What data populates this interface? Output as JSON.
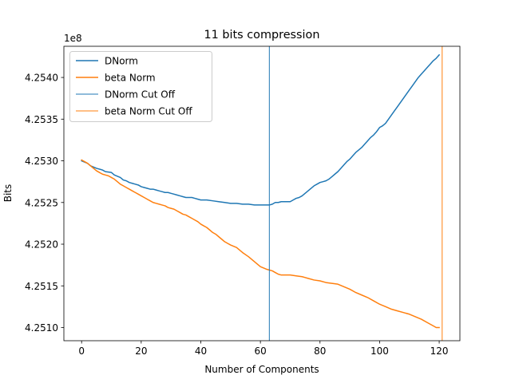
{
  "chart_data": {
    "type": "line",
    "title": "11 bits compression",
    "xlabel": "Number of Components",
    "ylabel": "Bits",
    "offset_text": "1e8",
    "xlim": [
      -5.95,
      126.95
    ],
    "ylim": [
      425084200,
      425437400
    ],
    "xticks": [
      0,
      20,
      40,
      60,
      80,
      100,
      120
    ],
    "yticks": [
      425100000,
      425150000,
      425200000,
      425250000,
      425300000,
      425350000,
      425400000
    ],
    "ytick_labels": [
      "4.2510",
      "4.2515",
      "4.2520",
      "4.2525",
      "4.2530",
      "4.2535",
      "4.2540"
    ],
    "grid": false,
    "legend_position": "upper-left",
    "series": [
      {
        "name": "DNorm",
        "color": "#1f77b4",
        "x": [
          0,
          2,
          3,
          5,
          7,
          8,
          10,
          11,
          13,
          14,
          15,
          16,
          17,
          18,
          19,
          20,
          21,
          22,
          23,
          24,
          25,
          26,
          27,
          28,
          29,
          30,
          31,
          32,
          33,
          34,
          35,
          36,
          37,
          38,
          39,
          40,
          42,
          44,
          46,
          48,
          50,
          52,
          54,
          56,
          58,
          60,
          62,
          63,
          64,
          65,
          66,
          67,
          68,
          69,
          70,
          71,
          72,
          73,
          74,
          75,
          76,
          77,
          78,
          79,
          80,
          81,
          82,
          83,
          84,
          85,
          86,
          87,
          88,
          89,
          90,
          91,
          92,
          93,
          94,
          95,
          96,
          97,
          98,
          99,
          100,
          101,
          102,
          103,
          104,
          105,
          106,
          107,
          108,
          109,
          110,
          111,
          112,
          113,
          114,
          115,
          116,
          117,
          118,
          119,
          120
        ],
        "y": [
          425300000,
          425297000,
          425294000,
          425291000,
          425289000,
          425287000,
          425286000,
          425283000,
          425280000,
          425277000,
          425276000,
          425274000,
          425273000,
          425272000,
          425271000,
          425269000,
          425268000,
          425267000,
          425266000,
          425266000,
          425265000,
          425264000,
          425263000,
          425262000,
          425262000,
          425261000,
          425260000,
          425259000,
          425258000,
          425257000,
          425256000,
          425256000,
          425256000,
          425255000,
          425254000,
          425253000,
          425253000,
          425252000,
          425251000,
          425250000,
          425249000,
          425249000,
          425248000,
          425248000,
          425247000,
          425247000,
          425247000,
          425247000,
          425248000,
          425250000,
          425250000,
          425251000,
          425251000,
          425251000,
          425251000,
          425253000,
          425255000,
          425256000,
          425258000,
          425261000,
          425264000,
          425267000,
          425270000,
          425272000,
          425274000,
          425275000,
          425276000,
          425278000,
          425281000,
          425284000,
          425287000,
          425291000,
          425295000,
          425299000,
          425302000,
          425306000,
          425310000,
          425313000,
          425316000,
          425320000,
          425324000,
          425328000,
          425331000,
          425335000,
          425340000,
          425342000,
          425345000,
          425350000,
          425355000,
          425360000,
          425365000,
          425370000,
          425375000,
          425380000,
          425385000,
          425390000,
          425395000,
          425400000,
          425404000,
          425408000,
          425412000,
          425416000,
          425420000,
          425423000,
          425427000
        ]
      },
      {
        "name": "beta Norm",
        "color": "#ff7f0e",
        "x": [
          0,
          1,
          2,
          3,
          4,
          5,
          6,
          7,
          8,
          9,
          10,
          11,
          12,
          13,
          14,
          15,
          16,
          17,
          18,
          19,
          20,
          21,
          22,
          23,
          24,
          25,
          26,
          27,
          28,
          29,
          30,
          31,
          32,
          33,
          34,
          35,
          36,
          37,
          38,
          39,
          40,
          41,
          42,
          43,
          44,
          45,
          46,
          47,
          48,
          49,
          50,
          52,
          54,
          56,
          58,
          60,
          62,
          64,
          65,
          66,
          67,
          68,
          70,
          72,
          74,
          76,
          78,
          80,
          82,
          84,
          86,
          88,
          90,
          92,
          94,
          96,
          98,
          100,
          102,
          104,
          106,
          108,
          110,
          112,
          114,
          116,
          118,
          119,
          120
        ],
        "y": [
          425301000,
          425299000,
          425297000,
          425294000,
          425291000,
          425288000,
          425286000,
          425284000,
          425283000,
          425282000,
          425280000,
          425278000,
          425275000,
          425272000,
          425270000,
          425268000,
          425266000,
          425264000,
          425262000,
          425260000,
          425258000,
          425256000,
          425254000,
          425252000,
          425250000,
          425249000,
          425248000,
          425247000,
          425246000,
          425244000,
          425243000,
          425242000,
          425240000,
          425238000,
          425236000,
          425235000,
          425233000,
          425231000,
          425229000,
          425227000,
          425224000,
          425222000,
          425220000,
          425217000,
          425214000,
          425212000,
          425209000,
          425206000,
          425203000,
          425201000,
          425199000,
          425196000,
          425190000,
          425185000,
          425179000,
          425173000,
          425170000,
          425168000,
          425166000,
          425164000,
          425163000,
          425163000,
          425163000,
          425162000,
          425161000,
          425159000,
          425157000,
          425156000,
          425154000,
          425153000,
          425152000,
          425149000,
          425146000,
          425142000,
          425139000,
          425136000,
          425132000,
          425128000,
          425125000,
          425122000,
          425120000,
          425118000,
          425116000,
          425113000,
          425110000,
          425106000,
          425102000,
          425100000,
          425100000
        ]
      }
    ],
    "cutoffs": [
      {
        "name": "DNorm Cut Off",
        "color": "#1f77b4",
        "x": 63
      },
      {
        "name": "beta Norm Cut Off",
        "color": "#ff7f0e",
        "x": 121
      }
    ]
  }
}
